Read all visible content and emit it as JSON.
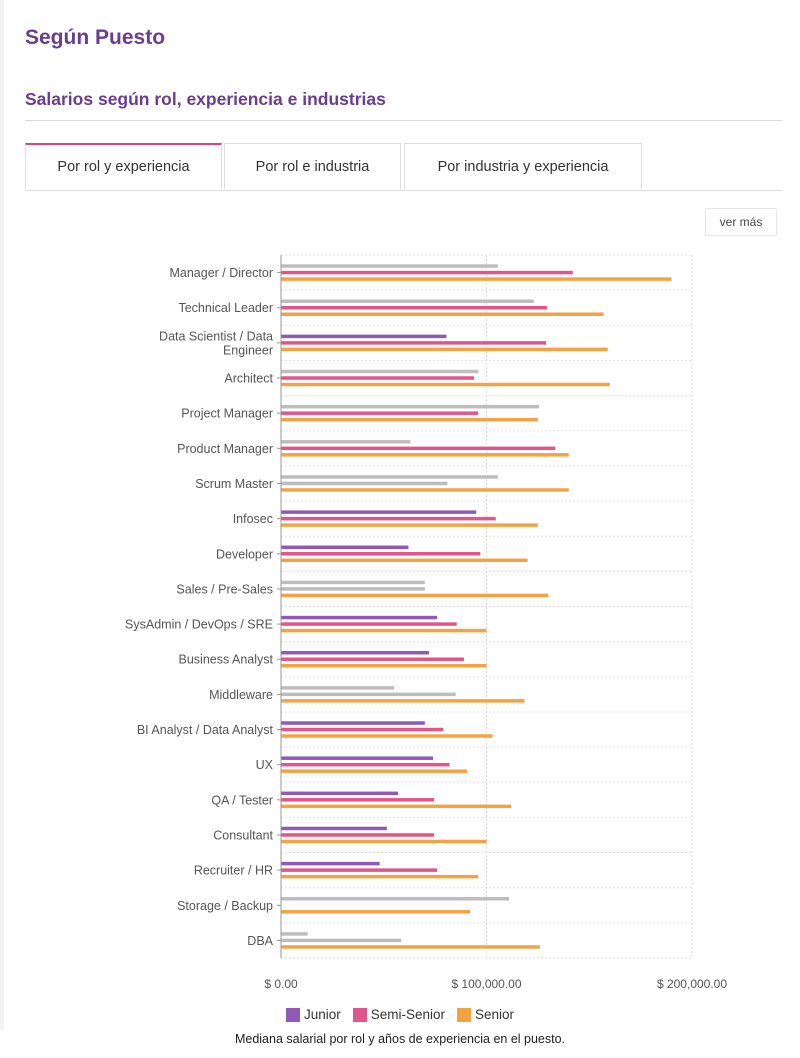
{
  "header": {
    "title": "Según Puesto",
    "section_title": "Salarios según rol, experiencia e industrias"
  },
  "tabs": [
    {
      "label": "Por rol y experiencia",
      "active": true
    },
    {
      "label": "Por rol e industria",
      "active": false
    },
    {
      "label": "Por industria y experiencia",
      "active": false
    }
  ],
  "more_button": {
    "label": "ver más"
  },
  "chart_data": {
    "type": "bar",
    "orientation": "horizontal",
    "caption": "Mediana salarial por rol y años de experiencia en el puesto.",
    "xlim": [
      0,
      200000
    ],
    "x_ticks": [
      {
        "value": 0,
        "label": "$ 0.00"
      },
      {
        "value": 100000,
        "label": "$ 100,000.00"
      },
      {
        "value": 200000,
        "label": "$ 200,000.00"
      }
    ],
    "grid": true,
    "legend_position": "bottom",
    "categories": [
      [
        "Manager / Director"
      ],
      [
        "Technical Leader"
      ],
      [
        "Data Scientist / Data",
        "Engineer"
      ],
      [
        "Architect"
      ],
      [
        "Project Manager"
      ],
      [
        "Product Manager"
      ],
      [
        "Scrum Master"
      ],
      [
        "Infosec"
      ],
      [
        "Developer"
      ],
      [
        "Sales / Pre-Sales"
      ],
      [
        "SysAdmin / DevOps / SRE"
      ],
      [
        "Business Analyst"
      ],
      [
        "Middleware"
      ],
      [
        "BI Analyst / Data Analyst"
      ],
      [
        "UX"
      ],
      [
        "QA / Tester"
      ],
      [
        "Consultant"
      ],
      [
        "Recruiter / HR"
      ],
      [
        "Storage / Backup"
      ],
      [
        "DBA"
      ]
    ],
    "series": [
      {
        "name": "Junior",
        "color": "#8e5ab5",
        "values": [
          105500,
          123000,
          80500,
          96000,
          125500,
          63000,
          105500,
          95000,
          62000,
          70000,
          76000,
          72000,
          55000,
          70000,
          74000,
          57000,
          51500,
          48000,
          111000,
          13000
        ],
        "colors": [
          "#bdbdbd",
          "#bdbdbd",
          "#8e5ab5",
          "#bdbdbd",
          "#bdbdbd",
          "#bdbdbd",
          "#bdbdbd",
          "#8e5ab5",
          "#8e5ab5",
          "#bdbdbd",
          "#8e5ab5",
          "#8e5ab5",
          "#bdbdbd",
          "#8e5ab5",
          "#8e5ab5",
          "#8e5ab5",
          "#8e5ab5",
          "#8e5ab5",
          "#bdbdbd",
          "#bdbdbd"
        ]
      },
      {
        "name": "Semi-Senior",
        "color": "#e0558c",
        "values": [
          142000,
          129500,
          129000,
          94000,
          96000,
          133500,
          81000,
          104500,
          97000,
          70000,
          85500,
          89000,
          85000,
          79000,
          82000,
          74500,
          74500,
          76000,
          null,
          58500
        ],
        "colors": [
          "#e0558c",
          "#e0558c",
          "#e0558c",
          "#e0558c",
          "#e0558c",
          "#e0558c",
          "#bdbdbd",
          "#e0558c",
          "#e0558c",
          "#bdbdbd",
          "#e0558c",
          "#e0558c",
          "#bdbdbd",
          "#e0558c",
          "#e0558c",
          "#e0558c",
          "#e0558c",
          "#e0558c",
          "#e0558c",
          "#bdbdbd"
        ]
      },
      {
        "name": "Senior",
        "color": "#f2a444",
        "values": [
          190000,
          157000,
          159000,
          160000,
          125000,
          140000,
          140000,
          125000,
          120000,
          130000,
          100000,
          100000,
          118500,
          103000,
          90500,
          112000,
          100000,
          96000,
          92000,
          126000
        ],
        "colors": [
          "#f2a444",
          "#f2a444",
          "#f2a444",
          "#f2a444",
          "#f2a444",
          "#f2a444",
          "#f2a444",
          "#f2a444",
          "#f2a444",
          "#f2a444",
          "#f2a444",
          "#f2a444",
          "#f2a444",
          "#f2a444",
          "#f2a444",
          "#f2a444",
          "#f2a444",
          "#f2a444",
          "#f2a444",
          "#f2a444"
        ]
      }
    ]
  }
}
